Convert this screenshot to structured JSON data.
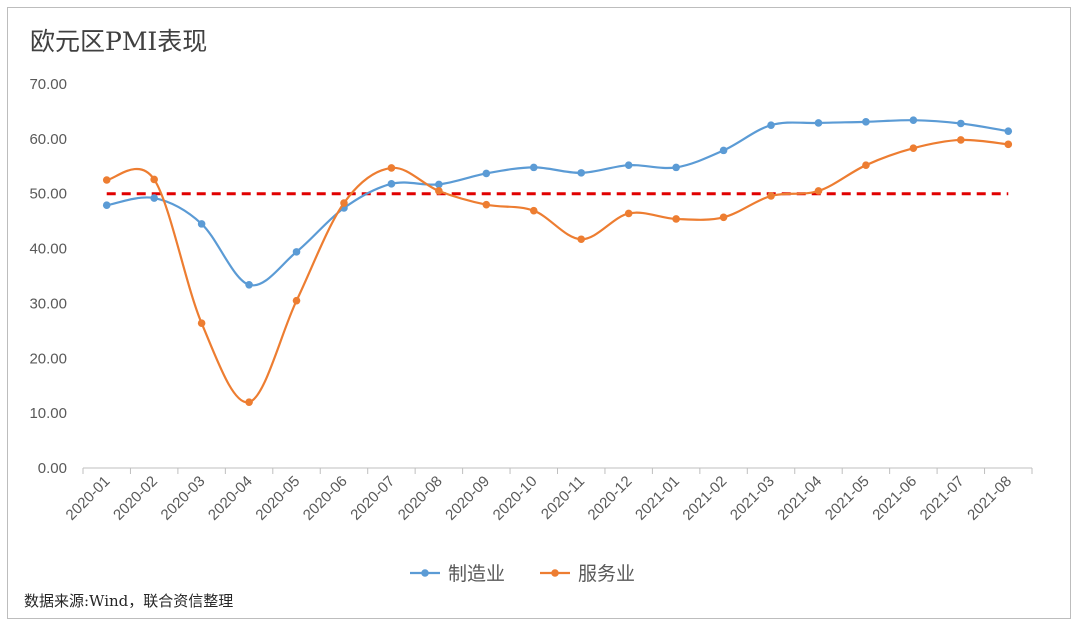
{
  "source_note": "数据来源:Wind，联合资信整理",
  "chart_data": {
    "type": "line",
    "title": "欧元区PMI表现",
    "categories": [
      "2020-01",
      "2020-02",
      "2020-03",
      "2020-04",
      "2020-05",
      "2020-06",
      "2020-07",
      "2020-08",
      "2020-09",
      "2020-10",
      "2020-11",
      "2020-12",
      "2021-01",
      "2021-02",
      "2021-03",
      "2021-04",
      "2021-05",
      "2021-06",
      "2021-07",
      "2021-08"
    ],
    "y_ticks": [
      "0.00",
      "10.00",
      "20.00",
      "30.00",
      "40.00",
      "50.00",
      "60.00",
      "70.00"
    ],
    "ylim": [
      0,
      70
    ],
    "reference_line": {
      "value": 50,
      "color": "#e00000",
      "style": "dashed"
    },
    "series": [
      {
        "name": "制造业",
        "color": "#5b9bd5",
        "values": [
          47.9,
          49.2,
          44.5,
          33.4,
          39.4,
          47.4,
          51.8,
          51.7,
          53.7,
          54.8,
          53.8,
          55.2,
          54.8,
          57.9,
          62.5,
          62.9,
          63.1,
          63.4,
          62.8,
          61.4
        ]
      },
      {
        "name": "服务业",
        "color": "#ed7d31",
        "values": [
          52.5,
          52.6,
          26.4,
          12.0,
          30.5,
          48.3,
          54.7,
          50.5,
          48.0,
          46.9,
          41.7,
          46.4,
          45.4,
          45.7,
          49.6,
          50.5,
          55.2,
          58.3,
          59.8,
          59.0
        ]
      }
    ],
    "grid": false,
    "legend_position": "bottom"
  }
}
